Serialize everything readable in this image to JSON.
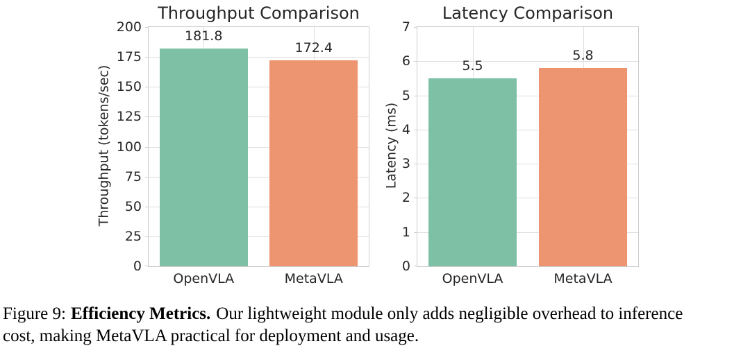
{
  "colors": {
    "bar_palette": [
      "#7dc0a6",
      "#ec9570"
    ],
    "grid": "#dddddd",
    "spine": "#cccccc",
    "chart_text": "#262626",
    "caption_text": "#000000"
  },
  "chart_data": [
    {
      "type": "bar",
      "title": "Throughput Comparison",
      "ylabel": "Throughput (tokens/sec)",
      "xlabel": "",
      "categories": [
        "OpenVLA",
        "MetaVLA"
      ],
      "values": [
        181.8,
        172.4
      ],
      "value_labels": [
        "181.8",
        "172.4"
      ],
      "ylim": [
        0,
        200
      ],
      "ytick_step": 25,
      "grid": true,
      "legend": "none"
    },
    {
      "type": "bar",
      "title": "Latency Comparison",
      "ylabel": "Latency (ms)",
      "xlabel": "",
      "categories": [
        "OpenVLA",
        "MetaVLA"
      ],
      "values": [
        5.5,
        5.8
      ],
      "value_labels": [
        "5.5",
        "5.8"
      ],
      "ylim": [
        0,
        7
      ],
      "ytick_step": 1,
      "grid": true,
      "legend": "none"
    }
  ],
  "caption": {
    "figure_label": "Figure 9:",
    "bold_title": "Efficiency Metrics.",
    "line1_rest": "Our lightweight module only adds negligible overhead to inference",
    "line2": "cost, making MetaVLA practical for deployment and usage."
  }
}
